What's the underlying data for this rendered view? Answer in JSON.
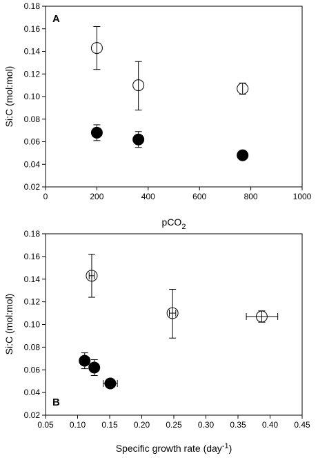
{
  "chart_data": [
    {
      "type": "scatter",
      "panel_label": "A",
      "xlabel": "pCO",
      "xlabel_sub": "2",
      "ylabel": "Si:C (mol:mol)",
      "xlim": [
        0,
        1000
      ],
      "ylim": [
        0.02,
        0.18
      ],
      "xticks": [
        0,
        200,
        400,
        600,
        800,
        1000
      ],
      "yticks": [
        0.02,
        0.04,
        0.06,
        0.08,
        0.1,
        0.12,
        0.14,
        0.16,
        0.18
      ],
      "x_tick_labels": [
        "0",
        "200",
        "400",
        "600",
        "800",
        "1000"
      ],
      "y_tick_labels": [
        "0.02",
        "0.04",
        "0.06",
        "0.08",
        "0.10",
        "0.12",
        "0.14",
        "0.16",
        "0.18"
      ],
      "series": [
        {
          "marker": "open-circle",
          "points": [
            {
              "x": 200,
              "y": 0.143,
              "yerr_low": 0.124,
              "yerr_high": 0.162
            },
            {
              "x": 362,
              "y": 0.11,
              "yerr_low": 0.088,
              "yerr_high": 0.131
            },
            {
              "x": 768,
              "y": 0.107,
              "yerr_low": 0.102,
              "yerr_high": 0.112
            }
          ]
        },
        {
          "marker": "filled-circle",
          "points": [
            {
              "x": 200,
              "y": 0.068,
              "yerr_low": 0.061,
              "yerr_high": 0.075
            },
            {
              "x": 362,
              "y": 0.062,
              "yerr_low": 0.055,
              "yerr_high": 0.069
            },
            {
              "x": 768,
              "y": 0.048
            }
          ]
        }
      ]
    },
    {
      "type": "scatter",
      "panel_label": "B",
      "xlabel": "Specific growth rate (day",
      "xlabel_sup": "-1",
      "xlabel_end": ")",
      "ylabel": "Si:C (mol:mol)",
      "xlim": [
        0.05,
        0.45
      ],
      "ylim": [
        0.02,
        0.18
      ],
      "xticks": [
        0.05,
        0.1,
        0.15,
        0.2,
        0.25,
        0.3,
        0.35,
        0.4,
        0.45
      ],
      "yticks": [
        0.02,
        0.04,
        0.06,
        0.08,
        0.1,
        0.12,
        0.14,
        0.16,
        0.18
      ],
      "x_tick_labels": [
        "0.05",
        "0.10",
        "0.15",
        "0.20",
        "0.25",
        "0.30",
        "0.35",
        "0.40",
        "0.45"
      ],
      "y_tick_labels": [
        "0.02",
        "0.04",
        "0.06",
        "0.08",
        "0.10",
        "0.12",
        "0.14",
        "0.16",
        "0.18"
      ],
      "series": [
        {
          "marker": "open-circle",
          "points": [
            {
              "x": 0.122,
              "y": 0.143,
              "yerr_low": 0.124,
              "yerr_high": 0.162,
              "xerr_low": 0.118,
              "xerr_high": 0.126
            },
            {
              "x": 0.248,
              "y": 0.11,
              "yerr_low": 0.088,
              "yerr_high": 0.131,
              "xerr_low": 0.243,
              "xerr_high": 0.253
            },
            {
              "x": 0.387,
              "y": 0.107,
              "yerr_low": 0.102,
              "yerr_high": 0.112,
              "xerr_low": 0.363,
              "xerr_high": 0.412
            }
          ]
        },
        {
          "marker": "filled-circle",
          "points": [
            {
              "x": 0.111,
              "y": 0.068,
              "yerr_low": 0.061,
              "yerr_high": 0.075,
              "xerr_low": 0.106,
              "xerr_high": 0.116
            },
            {
              "x": 0.126,
              "y": 0.062,
              "yerr_low": 0.055,
              "yerr_high": 0.069
            },
            {
              "x": 0.151,
              "y": 0.048,
              "xerr_low": 0.14,
              "xerr_high": 0.162
            }
          ]
        }
      ]
    }
  ]
}
